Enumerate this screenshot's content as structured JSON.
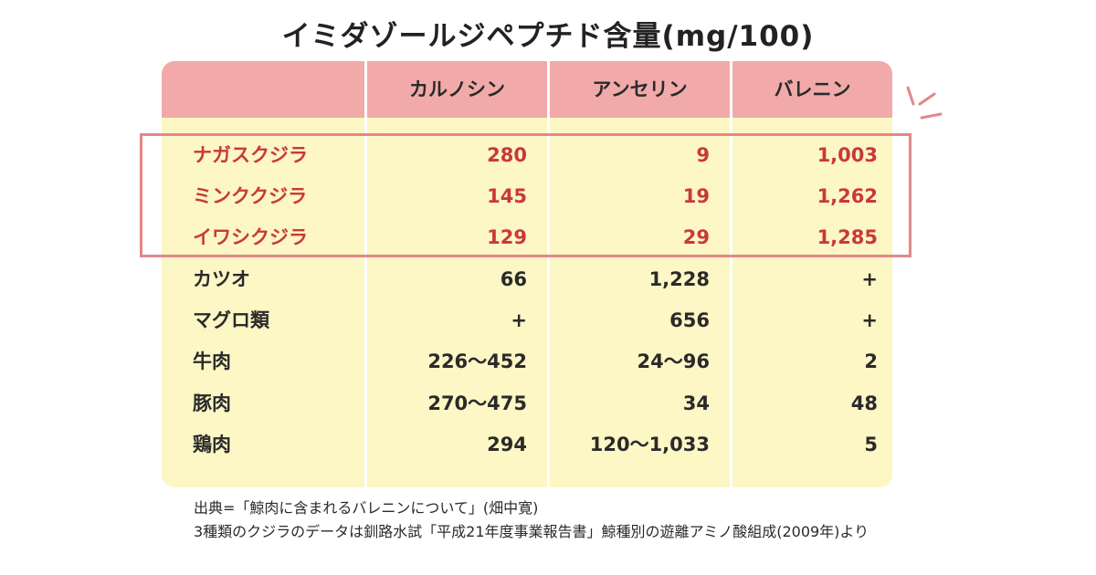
{
  "title": "イミダゾールジペプチド含量(mg/100)",
  "table": {
    "headers": [
      "",
      "カルノシン",
      "アンセリン",
      "バレニン"
    ],
    "rows": [
      {
        "name": "ナガスクジラ",
        "carnosine": "280",
        "anserine": "9",
        "balenine": "1,003",
        "highlight": true
      },
      {
        "name": "ミンククジラ",
        "carnosine": "145",
        "anserine": "19",
        "balenine": "1,262",
        "highlight": true
      },
      {
        "name": "イワシクジラ",
        "carnosine": "129",
        "anserine": "29",
        "balenine": "1,285",
        "highlight": true
      },
      {
        "name": "カツオ",
        "carnosine": "66",
        "anserine": "1,228",
        "balenine": "+",
        "highlight": false
      },
      {
        "name": "マグロ類",
        "carnosine": "+",
        "anserine": "656",
        "balenine": "+",
        "highlight": false
      },
      {
        "name": "牛肉",
        "carnosine": "226〜452",
        "anserine": "24〜96",
        "balenine": "2",
        "highlight": false
      },
      {
        "name": "豚肉",
        "carnosine": "270〜475",
        "anserine": "34",
        "balenine": "48",
        "highlight": false
      },
      {
        "name": "鶏肉",
        "carnosine": "294",
        "anserine": "120〜1,033",
        "balenine": "5",
        "highlight": false
      }
    ]
  },
  "notes": {
    "source": "出典=「鯨肉に含まれるバレニンについて」(畑中寛)",
    "data_note": "3種類のクジラのデータは釧路水試「平成21年度事業報告書」鯨種別の遊離アミノ酸組成(2009年)より"
  },
  "colors": {
    "header_bg": "#f1aaa9",
    "table_bg": "#fdf6c5",
    "highlight_text": "#c8393a",
    "highlight_border": "#e2888a"
  }
}
